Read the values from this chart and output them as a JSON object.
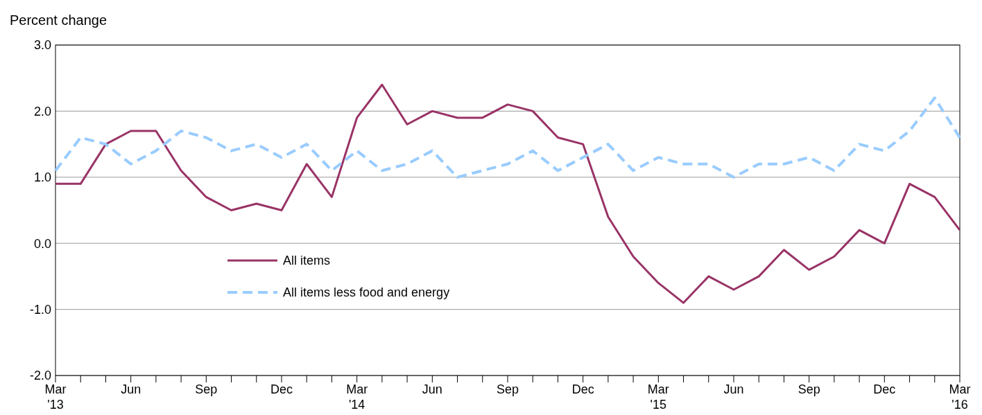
{
  "chart_data": {
    "type": "line",
    "ylabel": "Percent change",
    "categories": [
      "Mar '13",
      null,
      null,
      "Jun",
      null,
      null,
      "Sep",
      null,
      null,
      "Dec",
      null,
      null,
      "Mar '14",
      null,
      null,
      "Jun",
      null,
      null,
      "Sep",
      null,
      null,
      "Dec",
      null,
      null,
      "Mar '15",
      null,
      null,
      "Jun",
      null,
      null,
      "Sep",
      null,
      null,
      "Dec",
      null,
      null,
      "Mar '16"
    ],
    "series": [
      {
        "name": "All items",
        "color": "#993366",
        "line_style": "solid",
        "values": [
          0.9,
          0.9,
          1.5,
          1.7,
          1.7,
          1.1,
          0.7,
          0.5,
          0.6,
          0.5,
          1.2,
          0.7,
          1.9,
          2.4,
          1.8,
          2.0,
          1.9,
          1.9,
          2.1,
          2.0,
          1.6,
          1.5,
          0.4,
          -0.2,
          -0.6,
          -0.9,
          -0.5,
          -0.7,
          -0.5,
          -0.1,
          -0.4,
          -0.2,
          0.2,
          0.0,
          0.9,
          0.7,
          0.2
        ]
      },
      {
        "name": "All items less food and energy",
        "color": "#99ccff",
        "line_style": "dashed",
        "values": [
          1.1,
          1.6,
          1.5,
          1.2,
          1.4,
          1.7,
          1.6,
          1.4,
          1.5,
          1.3,
          1.5,
          1.1,
          1.4,
          1.1,
          1.2,
          1.4,
          1.0,
          1.1,
          1.2,
          1.4,
          1.1,
          1.3,
          1.5,
          1.1,
          1.3,
          1.2,
          1.2,
          1.0,
          1.2,
          1.2,
          1.3,
          1.1,
          1.5,
          1.4,
          1.7,
          2.2,
          1.6
        ]
      }
    ],
    "ylim": [
      -2,
      3
    ],
    "yticks": [
      {
        "value": -2,
        "label": "-2.0"
      },
      {
        "value": -1,
        "label": "-1.0"
      },
      {
        "value": 0,
        "label": "0.0"
      },
      {
        "value": 1,
        "label": "1.0"
      },
      {
        "value": 2,
        "label": "2.0"
      },
      {
        "value": 3,
        "label": "3.0"
      }
    ],
    "grid": "y",
    "legend": "center",
    "marker": "none"
  }
}
